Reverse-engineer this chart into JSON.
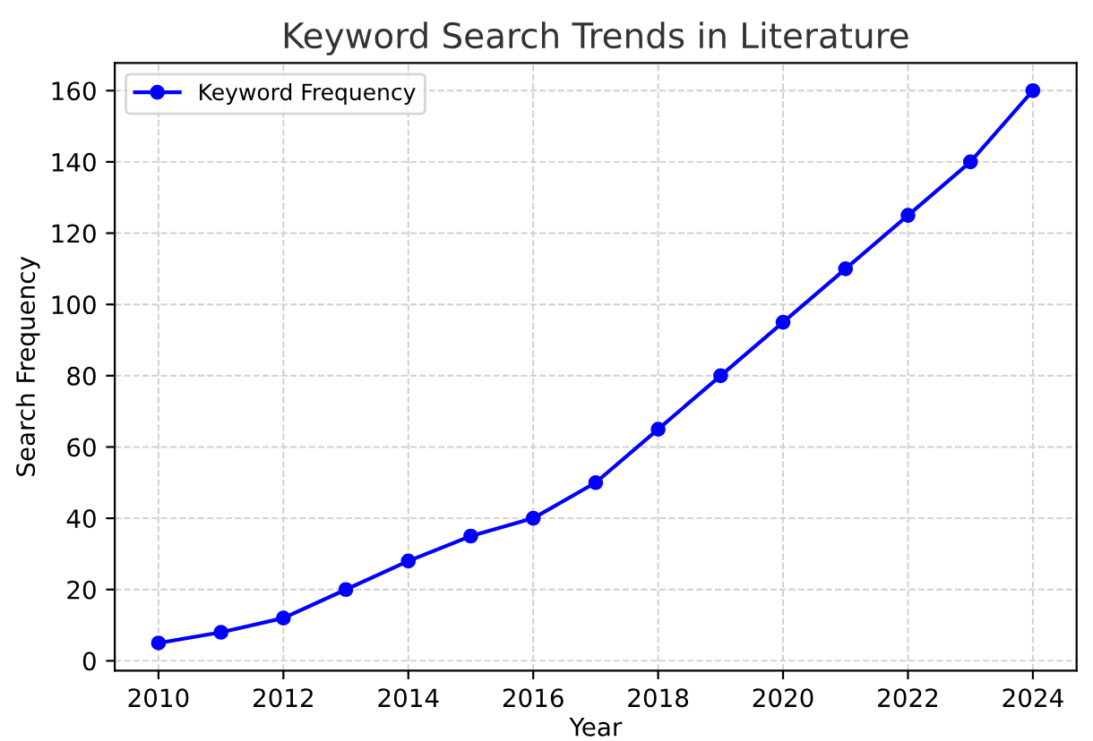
{
  "chart_data": {
    "type": "line",
    "title": "Keyword Search Trends in Literature",
    "xlabel": "Year",
    "ylabel": "Search Frequency",
    "x": [
      2010,
      2011,
      2012,
      2013,
      2014,
      2015,
      2016,
      2017,
      2018,
      2019,
      2020,
      2021,
      2022,
      2023,
      2024
    ],
    "series": [
      {
        "name": "Keyword Frequency",
        "color": "#0000ff",
        "values": [
          5,
          8,
          12,
          20,
          28,
          35,
          40,
          50,
          65,
          80,
          95,
          110,
          125,
          140,
          160
        ]
      }
    ],
    "xlim": [
      2009.3,
      2024.7
    ],
    "ylim": [
      -2.75,
      167.75
    ],
    "xticks": [
      2010,
      2012,
      2014,
      2016,
      2018,
      2020,
      2022,
      2024
    ],
    "yticks": [
      0,
      20,
      40,
      60,
      80,
      100,
      120,
      140,
      160
    ],
    "grid": true,
    "legend": "top left",
    "marker": "circle",
    "line_style": "solid"
  }
}
